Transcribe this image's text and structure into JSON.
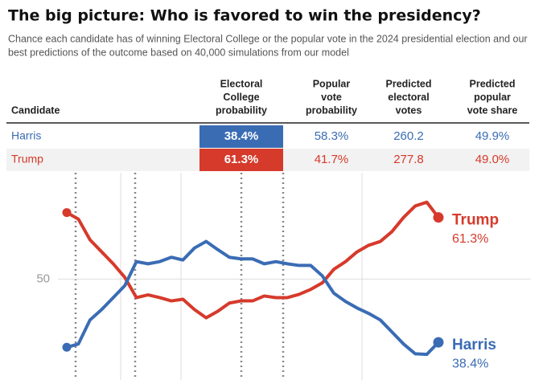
{
  "header": {
    "title": "The big picture: Who is favored to win the presidency?",
    "subtitle": [
      "Chance each candidate has of winning Electoral College or the popular vote in the 2024 presidential election and our",
      "best predictions of the outcome based on 40,000 simulations from our model"
    ]
  },
  "table": {
    "columns": [
      [
        "Candidate"
      ],
      [
        "Electoral",
        "College",
        "probability"
      ],
      [
        "Popular",
        "vote",
        "probability"
      ],
      [
        "Predicted",
        "electoral",
        "votes"
      ],
      [
        "Predicted",
        "popular",
        "vote share"
      ]
    ],
    "rows": [
      [
        "Harris",
        "38.4%",
        "58.3%",
        "260.2",
        "49.9%"
      ],
      [
        "Trump",
        "61.3%",
        "41.7%",
        "277.8",
        "49.0%"
      ]
    ],
    "colors": [
      "#3a6cb4",
      "#d63a2b"
    ]
  },
  "chart_data": {
    "type": "line",
    "categories": [
      null,
      null,
      null,
      null,
      null,
      null,
      null,
      null,
      null,
      null,
      null,
      null,
      null,
      null,
      null,
      null,
      null,
      null,
      null,
      null,
      null,
      null,
      null,
      null,
      null,
      null,
      null,
      null,
      null,
      null,
      null,
      null,
      null
    ],
    "ylim": [
      31.5,
      69.5
    ],
    "yticks": [
      50
    ],
    "grid": true,
    "series": [
      {
        "name": "Trump",
        "color": "#d63a2b",
        "end_label": "61.3%",
        "values": [
          62.2,
          61.0,
          57.2,
          55.0,
          52.8,
          50.3,
          46.6,
          47.1,
          46.6,
          46.0,
          46.3,
          44.4,
          42.9,
          44.1,
          45.6,
          46.0,
          46.0,
          46.9,
          46.6,
          46.6,
          47.2,
          48.1,
          49.3,
          51.8,
          53.2,
          55.0,
          56.2,
          56.9,
          58.7,
          61.3,
          63.4,
          64.1,
          61.3
        ]
      },
      {
        "name": "Harris",
        "color": "#3a6cb4",
        "end_label": "38.4%",
        "values": [
          37.5,
          38.1,
          42.5,
          44.4,
          46.6,
          48.8,
          53.2,
          52.8,
          53.2,
          54.0,
          53.5,
          55.7,
          56.9,
          55.4,
          54.0,
          53.7,
          53.7,
          52.8,
          53.2,
          52.8,
          52.5,
          52.5,
          50.6,
          47.4,
          45.9,
          44.7,
          43.7,
          42.5,
          40.3,
          38.1,
          36.3,
          36.2,
          38.4
        ]
      }
    ]
  }
}
